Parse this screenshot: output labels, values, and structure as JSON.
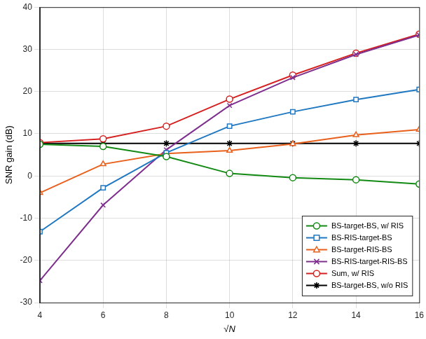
{
  "chart_data": {
    "type": "line",
    "x_label": "√N",
    "y_label": "SNR gain (dB)",
    "x": [
      4,
      6,
      8,
      10,
      12,
      14,
      16
    ],
    "xlim": [
      4,
      16
    ],
    "xticks": [
      4,
      6,
      8,
      10,
      12,
      14,
      16
    ],
    "ylim": [
      -30,
      40
    ],
    "yticks": [
      -30,
      -20,
      -10,
      0,
      10,
      20,
      30,
      40
    ],
    "grid": true,
    "legend": "lower right",
    "series": [
      {
        "name": "BS-target-BS, w/ RIS",
        "color": "#138a13",
        "marker": "circle",
        "values": [
          7.5,
          7.0,
          4.6,
          0.6,
          -0.4,
          -0.9,
          -1.9
        ]
      },
      {
        "name": "BS-RIS-target-BS",
        "color": "#1f78c1",
        "marker": "square",
        "values": [
          -13.2,
          -2.8,
          5.5,
          11.8,
          15.2,
          18.1,
          20.5
        ]
      },
      {
        "name": "BS-target-RIS-BS",
        "color": "#e8601c",
        "marker": "triangle",
        "values": [
          -4.0,
          2.8,
          5.3,
          6.0,
          7.6,
          9.7,
          11.0
        ]
      },
      {
        "name": "BS-RIS-target-RIS-BS",
        "color": "#7e2f8e",
        "marker": "x",
        "values": [
          -24.8,
          -6.9,
          6.2,
          16.7,
          23.3,
          28.8,
          33.4
        ]
      },
      {
        "name": "Sum, w/ RIS",
        "color": "#d62020",
        "marker": "circle",
        "values": [
          7.9,
          8.8,
          11.8,
          18.2,
          23.9,
          29.1,
          33.6
        ]
      },
      {
        "name": "BS-target-BS, w/o RIS",
        "color": "#000000",
        "marker": "asterisk",
        "values": [
          7.7,
          7.7,
          7.7,
          7.7,
          7.7,
          7.7,
          7.7
        ]
      }
    ]
  }
}
